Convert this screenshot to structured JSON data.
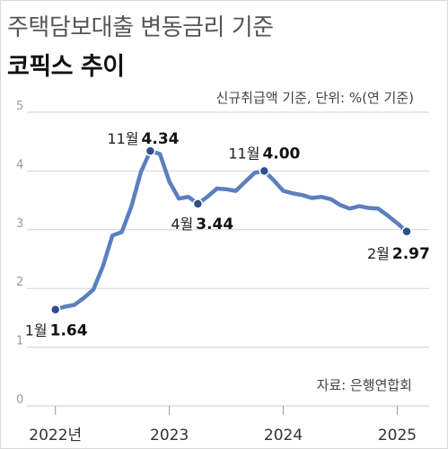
{
  "header": {
    "title": "주택담보대출 변동금리 기준",
    "subtitle": "코픽스 추이",
    "unit_note": "신규취급액 기준, 단위: %(연 기준)",
    "source": "자료: 은행연합회"
  },
  "colors": {
    "line": "#5b7fbe",
    "marker": "#2c4f8a",
    "grid": "#d3d3d3"
  },
  "chart_data": {
    "type": "line",
    "title": "코픽스 추이",
    "ylim": [
      0,
      5
    ],
    "yticks": [
      0,
      1,
      2,
      3,
      4,
      5
    ],
    "x_ticks": [
      {
        "x": 2022.0,
        "label": "2022년"
      },
      {
        "x": 2023.0,
        "label": "2023"
      },
      {
        "x": 2024.0,
        "label": "2024"
      },
      {
        "x": 2025.0,
        "label": "2025"
      }
    ],
    "x": [
      2022.0,
      2022.083,
      2022.167,
      2022.25,
      2022.333,
      2022.417,
      2022.5,
      2022.583,
      2022.667,
      2022.75,
      2022.833,
      2022.917,
      2023.0,
      2023.083,
      2023.167,
      2023.25,
      2023.333,
      2023.417,
      2023.5,
      2023.583,
      2023.667,
      2023.75,
      2023.833,
      2023.917,
      2024.0,
      2024.083,
      2024.167,
      2024.25,
      2024.333,
      2024.417,
      2024.5,
      2024.583,
      2024.667,
      2024.75,
      2024.833,
      2024.917,
      2025.0,
      2025.083
    ],
    "values": [
      1.64,
      1.69,
      1.72,
      1.84,
      1.98,
      2.38,
      2.9,
      2.96,
      3.4,
      3.98,
      4.34,
      4.29,
      3.82,
      3.53,
      3.56,
      3.44,
      3.56,
      3.7,
      3.69,
      3.66,
      3.82,
      3.97,
      4.0,
      3.84,
      3.66,
      3.62,
      3.59,
      3.54,
      3.56,
      3.52,
      3.42,
      3.36,
      3.4,
      3.37,
      3.36,
      3.24,
      3.11,
      2.97
    ],
    "annotations": [
      {
        "index": 0,
        "month": "1월",
        "value": "1.64",
        "pos": "below"
      },
      {
        "index": 10,
        "month": "11월",
        "value": "4.34",
        "pos": "left"
      },
      {
        "index": 15,
        "month": "4월",
        "value": "3.44",
        "pos": "below"
      },
      {
        "index": 22,
        "month": "11월",
        "value": "4.00",
        "pos": "above"
      },
      {
        "index": 37,
        "month": "2월",
        "value": "2.97",
        "pos": "below"
      }
    ]
  }
}
